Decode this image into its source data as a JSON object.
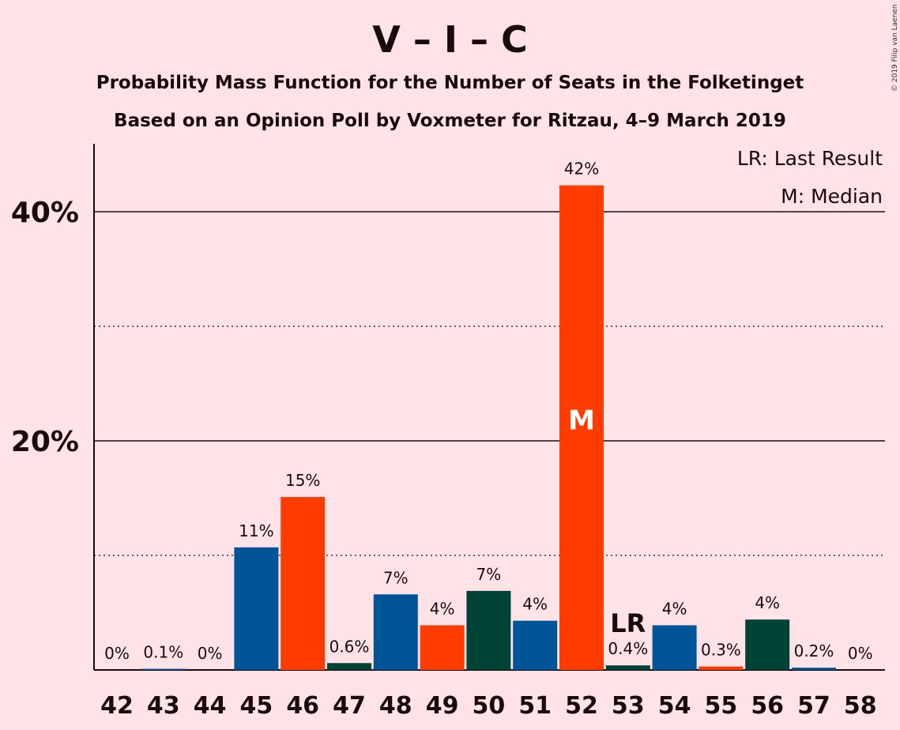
{
  "chart_data": {
    "type": "bar",
    "title": "V – I – C",
    "subtitle_lines": [
      "Probability Mass Function for the Number of Seats in the Folketinget",
      "Based on an Opinion Poll by Voxmeter for Ritzau, 4–9 March 2019"
    ],
    "copyright": "© 2019 Filip van Laenen",
    "legend": {
      "position": "top-right",
      "entries": [
        "LR: Last Result",
        "M: Median"
      ]
    },
    "ylim": [
      0,
      46
    ],
    "y_ticks": [
      {
        "value": 20,
        "label": "20%"
      },
      {
        "value": 40,
        "label": "40%"
      }
    ],
    "y_minor_gridlines": [
      10,
      30
    ],
    "categories": [
      "42",
      "43",
      "44",
      "45",
      "46",
      "47",
      "48",
      "49",
      "50",
      "51",
      "52",
      "53",
      "54",
      "55",
      "56",
      "57",
      "58"
    ],
    "values": [
      0,
      0.1,
      0,
      10.7,
      15.1,
      0.6,
      6.6,
      3.9,
      6.9,
      4.3,
      42.3,
      0.4,
      3.9,
      0.3,
      4.4,
      0.2,
      0
    ],
    "labels": [
      "0%",
      "0.1%",
      "0%",
      "11%",
      "15%",
      "0.6%",
      "7%",
      "4%",
      "7%",
      "4%",
      "42%",
      "0.4%",
      "4%",
      "0.3%",
      "4%",
      "0.2%",
      "0%"
    ],
    "bar_colors": [
      "#005599",
      "#005599",
      "#005599",
      "#005599",
      "#FF3C00",
      "#004236",
      "#005599",
      "#FF3C00",
      "#004236",
      "#005599",
      "#FF3C00",
      "#004236",
      "#005599",
      "#FF3C00",
      "#004236",
      "#005599",
      "#005599"
    ],
    "last_result_seat": "53",
    "last_result_label": "LR",
    "median_seat": "52",
    "median_label": "M"
  },
  "colors": {
    "background": "#FFE3E6",
    "party_v": "#005599",
    "party_i": "#FF3C00",
    "party_c": "#004236"
  }
}
